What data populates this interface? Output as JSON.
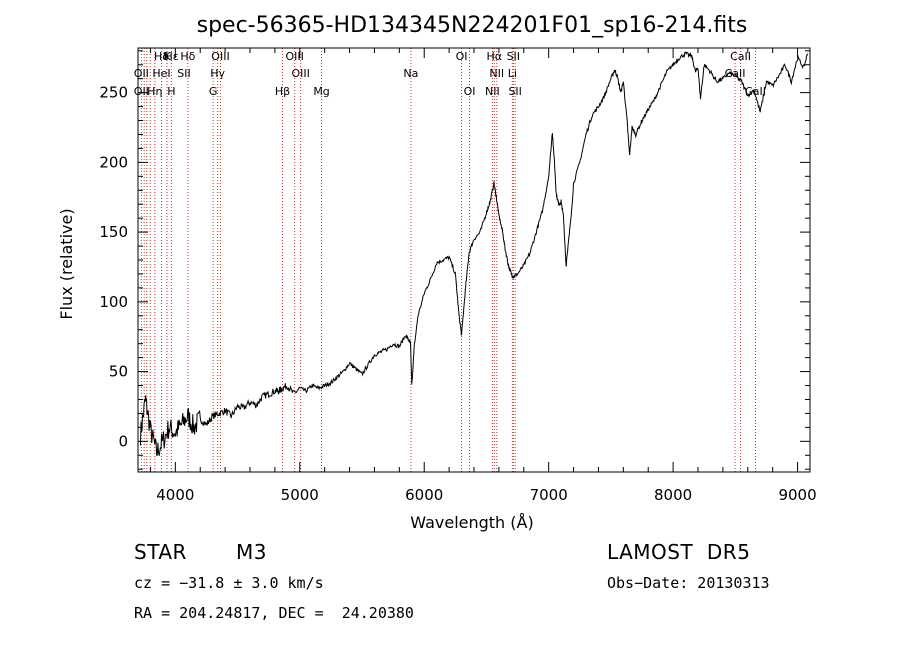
{
  "chart_data": {
    "type": "line",
    "title": "spec-56365-HD134345N224201F01_sp16-214.fits",
    "xlabel": "Wavelength (Å)",
    "ylabel": "Flux (relative)",
    "xlim": [
      3700,
      9100
    ],
    "ylim": [
      -22,
      282
    ],
    "xticks": [
      4000,
      5000,
      6000,
      7000,
      8000,
      9000
    ],
    "yticks": [
      0,
      50,
      100,
      150,
      200,
      250
    ],
    "grid": false,
    "series": [
      {
        "x": [
          3720,
          3760,
          3800,
          3850,
          3900,
          3950,
          4000,
          4050,
          4100,
          4150,
          4200,
          4250,
          4300,
          4350,
          4400,
          4450,
          4500,
          4550,
          4600,
          4650,
          4700,
          4750,
          4800,
          4830,
          4860,
          4900,
          4950,
          5000,
          5050,
          5100,
          5150,
          5200,
          5250,
          5300,
          5350,
          5400,
          5450,
          5500,
          5550,
          5600,
          5650,
          5700,
          5750,
          5800,
          5850,
          5880,
          5890,
          5900,
          5920,
          5950,
          6000,
          6050,
          6100,
          6150,
          6200,
          6250,
          6280,
          6300,
          6330,
          6360,
          6400,
          6450,
          6500,
          6530,
          6560,
          6580,
          6600,
          6630,
          6650,
          6680,
          6700,
          6720,
          6750,
          6800,
          6850,
          6900,
          6950,
          7000,
          7030,
          7050,
          7060,
          7080,
          7100,
          7120,
          7140,
          7150,
          7160,
          7180,
          7200,
          7250,
          7300,
          7350,
          7400,
          7450,
          7500,
          7530,
          7550,
          7580,
          7600,
          7630,
          7650,
          7670,
          7700,
          7750,
          7800,
          7850,
          7900,
          7950,
          8000,
          8050,
          8100,
          8150,
          8180,
          8200,
          8220,
          8250,
          8300,
          8350,
          8400,
          8450,
          8500,
          8550,
          8600,
          8650,
          8700,
          8750,
          8800,
          8850,
          8900,
          8950,
          9000,
          9050,
          9080
        ],
        "y": [
          5,
          30,
          8,
          -8,
          0,
          10,
          6,
          12,
          18,
          10,
          16,
          12,
          18,
          20,
          22,
          18,
          25,
          24,
          28,
          26,
          32,
          34,
          36,
          36,
          38,
          40,
          34,
          38,
          36,
          40,
          38,
          40,
          42,
          46,
          50,
          56,
          52,
          48,
          55,
          62,
          64,
          66,
          70,
          68,
          76,
          72,
          70,
          40,
          68,
          90,
          106,
          116,
          128,
          130,
          132,
          120,
          90,
          76,
          108,
          135,
          145,
          150,
          164,
          172,
          185,
          175,
          162,
          150,
          138,
          125,
          120,
          118,
          120,
          126,
          135,
          150,
          165,
          190,
          222,
          195,
          178,
          170,
          172,
          160,
          125,
          135,
          145,
          160,
          185,
          200,
          220,
          234,
          240,
          248,
          260,
          266,
          262,
          250,
          258,
          230,
          205,
          225,
          220,
          230,
          238,
          245,
          255,
          265,
          270,
          275,
          278,
          276,
          265,
          268,
          246,
          270,
          265,
          258,
          260,
          264,
          262,
          258,
          248,
          252,
          236,
          258,
          255,
          262,
          270,
          258,
          275,
          268,
          278
        ]
      }
    ],
    "lines": [
      {
        "label": "Hδ",
        "x": 3889,
        "row": 1
      },
      {
        "label": "K",
        "x": 3933,
        "row": 1
      },
      {
        "label": "Hε",
        "x": 3970,
        "row": 1
      },
      {
        "label": "Hδ",
        "x": 4101,
        "row": 1
      },
      {
        "label": "OIII",
        "x": 4363,
        "row": 1
      },
      {
        "label": "OIII",
        "x": 4959,
        "row": 1
      },
      {
        "label": "OI",
        "x": 6300,
        "row": 1
      },
      {
        "label": "Hα",
        "x": 6563,
        "row": 1
      },
      {
        "label": "SII",
        "x": 6716,
        "row": 1
      },
      {
        "label": "CaII",
        "x": 8542,
        "row": 1
      },
      {
        "label": "OII",
        "x": 3727,
        "row": 2
      },
      {
        "label": "HeI",
        "x": 3889,
        "row": 2
      },
      {
        "label": "SII",
        "x": 4070,
        "row": 2
      },
      {
        "label": "Hγ",
        "x": 4340,
        "row": 2
      },
      {
        "label": "OIII",
        "x": 5007,
        "row": 2
      },
      {
        "label": "Na",
        "x": 5893,
        "row": 2
      },
      {
        "label": "NII",
        "x": 6583,
        "row": 2
      },
      {
        "label": "Li",
        "x": 6708,
        "row": 2
      },
      {
        "label": "CaII",
        "x": 8498,
        "row": 2
      },
      {
        "label": "OII",
        "x": 3727,
        "row": 3
      },
      {
        "label": "Hη",
        "x": 3835,
        "row": 3
      },
      {
        "label": "H",
        "x": 3968,
        "row": 3
      },
      {
        "label": "G",
        "x": 4304,
        "row": 3
      },
      {
        "label": "Hβ",
        "x": 4861,
        "row": 3
      },
      {
        "label": "Mg",
        "x": 5175,
        "row": 3
      },
      {
        "label": "OI",
        "x": 6364,
        "row": 3
      },
      {
        "label": "NII",
        "x": 6548,
        "row": 3
      },
      {
        "label": "SII",
        "x": 6731,
        "row": 3
      },
      {
        "label": "CaII",
        "x": 8662,
        "row": 3
      }
    ],
    "line_positions": [
      3727,
      3750,
      3771,
      3798,
      3835,
      3889,
      3933,
      3968,
      4101,
      4304,
      4340,
      4363,
      4861,
      4959,
      5007,
      5175,
      5893,
      6300,
      6364,
      6548,
      6563,
      6583,
      6708,
      6716,
      6731,
      8498,
      8542,
      8662
    ]
  },
  "info": {
    "object_class": "STAR",
    "subclass": "M3",
    "survey": "LAMOST  DR5",
    "cz": "cz = −31.8 ± 3.0 km/s",
    "obs_date": "Obs−Date: 20130313",
    "radec": "RA = 204.24817, DEC =  24.20380"
  },
  "colors": {
    "spectrum": "#000000",
    "line_markers": "#c0392b",
    "axes": "#000000"
  }
}
